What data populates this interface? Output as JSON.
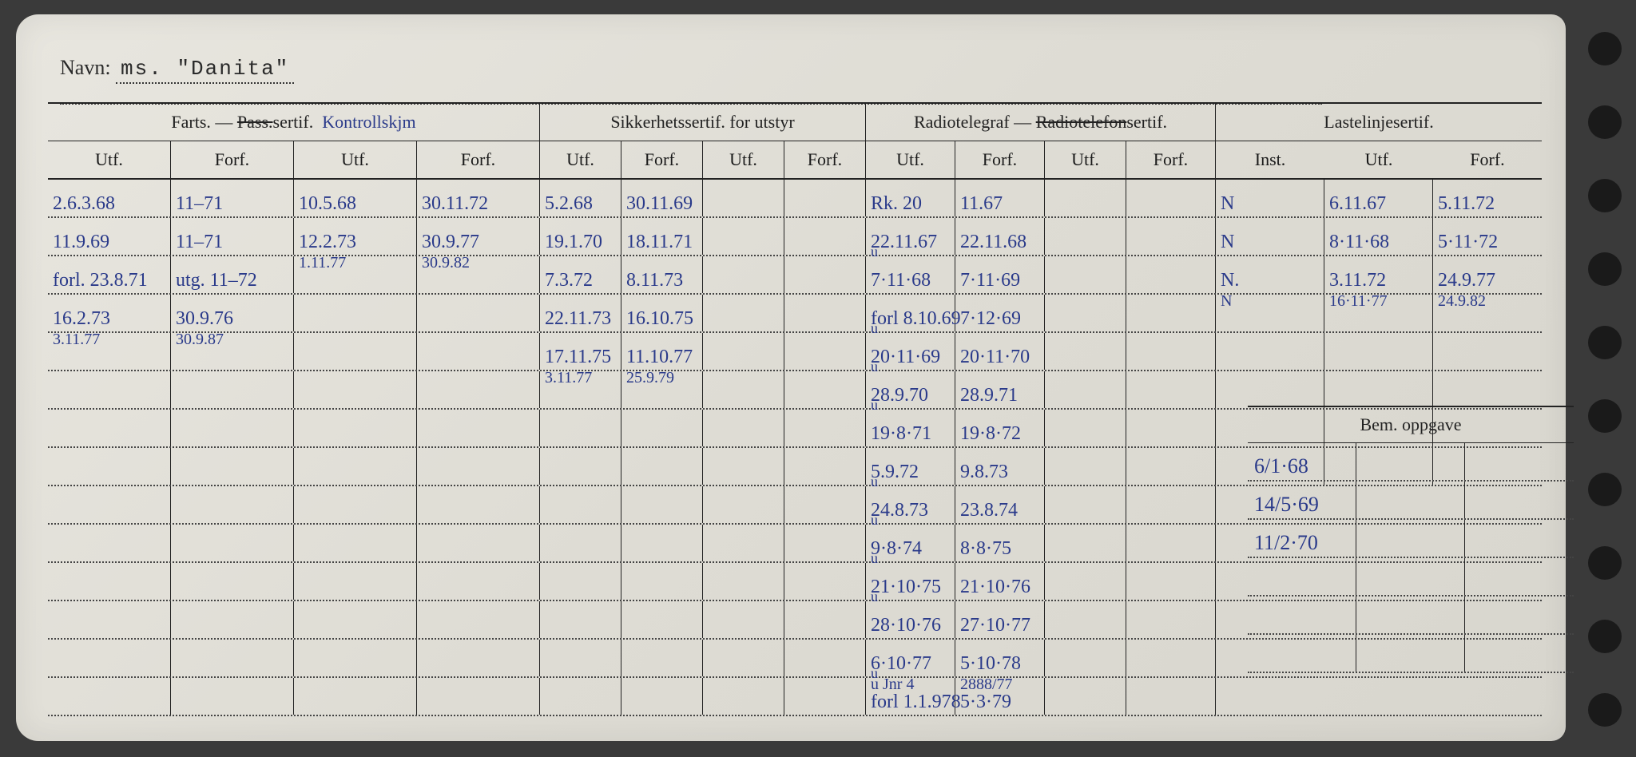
{
  "navn": {
    "label": "Navn:",
    "value": "ms. \"Danita\""
  },
  "sections": {
    "farts": {
      "title_prefix": "Farts. —",
      "pass_strike": "Pass.",
      "sertif": "sertif.",
      "hw_note": "Kontrollskjm"
    },
    "sikker": "Sikkerhetssertif. for utstyr",
    "radio": {
      "prefix": "Radiotelegraf —",
      "strike": "Radiotelefon",
      "suffix": "sertif."
    },
    "laste": "Lastelinjesertif."
  },
  "subheaders": {
    "utf": "Utf.",
    "forf": "Forf.",
    "inst": "Inst."
  },
  "bem_header": "Bem. oppgave",
  "rows": [
    {
      "farts": [
        "2.6.3.68",
        "11–71",
        "10.5.68",
        "30.11.72"
      ],
      "sikker": [
        "5.2.68",
        "30.11.69",
        "",
        ""
      ],
      "radio": [
        "Rk. 20",
        "11.67",
        "",
        ""
      ],
      "laste": [
        "N",
        "6.11.67",
        "5.11.72"
      ]
    },
    {
      "farts": [
        "11.9.69",
        "11–71",
        "12.2.73",
        "30.9.77"
      ],
      "farts_sub": [
        "",
        "",
        "1.11.77",
        "30.9.82"
      ],
      "sikker": [
        "19.1.70",
        "18.11.71",
        "",
        ""
      ],
      "radio": [
        "22.11.67",
        "22.11.68",
        "",
        ""
      ],
      "laste": [
        "N",
        "8·11·68",
        "5·11·72"
      ]
    },
    {
      "farts": [
        "forl. 23.8.71",
        "utg. 11–72",
        "",
        ""
      ],
      "sikker": [
        "7.3.72",
        "8.11.73",
        "",
        ""
      ],
      "radio": [
        "7·11·68",
        "7·11·69",
        "",
        ""
      ],
      "radio_pre": "u",
      "laste": [
        "N.",
        "3.11.72",
        "24.9.77"
      ],
      "laste_sub": [
        "N",
        "16·11·77",
        "24.9.82"
      ]
    },
    {
      "farts": [
        "16.2.73",
        "30.9.76",
        "",
        ""
      ],
      "farts_sub": [
        "3.11.77",
        "30.9.87",
        "",
        ""
      ],
      "sikker": [
        "22.11.73",
        "16.10.75",
        "",
        ""
      ],
      "radio": [
        "forl 8.10.69",
        "7·12·69",
        "",
        ""
      ],
      "laste": [
        "",
        "",
        ""
      ]
    },
    {
      "farts": [
        "",
        "",
        "",
        ""
      ],
      "sikker": [
        "17.11.75",
        "11.10.77",
        "",
        ""
      ],
      "sikker_sub": [
        "3.11.77",
        "25.9.79",
        "",
        ""
      ],
      "radio": [
        "20·11·69",
        "20·11·70",
        "",
        ""
      ],
      "radio_pre": "u",
      "laste": [
        "",
        "",
        ""
      ]
    },
    {
      "farts": [
        "",
        "",
        "",
        ""
      ],
      "sikker": [
        "",
        "",
        "",
        ""
      ],
      "radio": [
        "28.9.70",
        "28.9.71",
        "",
        ""
      ],
      "radio_pre": "u",
      "laste": [
        "",
        "",
        ""
      ]
    },
    {
      "farts": [
        "",
        "",
        "",
        ""
      ],
      "sikker": [
        "",
        "",
        "",
        ""
      ],
      "radio": [
        "19·8·71",
        "19·8·72",
        "",
        ""
      ],
      "radio_pre": "u",
      "laste": [
        "",
        "",
        ""
      ]
    },
    {
      "farts": [
        "",
        "",
        "",
        ""
      ],
      "sikker": [
        "",
        "",
        "",
        ""
      ],
      "radio": [
        "5.9.72",
        "9.8.73",
        "",
        ""
      ],
      "laste": [
        "",
        "",
        ""
      ]
    },
    {
      "farts": [
        "",
        "",
        "",
        ""
      ],
      "sikker": [
        "",
        "",
        "",
        ""
      ],
      "radio": [
        "24.8.73",
        "23.8.74",
        "",
        ""
      ],
      "radio_pre": "u",
      "laste": null
    },
    {
      "farts": [
        "",
        "",
        "",
        ""
      ],
      "sikker": [
        "",
        "",
        "",
        ""
      ],
      "radio": [
        "9·8·74",
        "8·8·75",
        "",
        ""
      ],
      "radio_pre": "u",
      "laste": null
    },
    {
      "farts": [
        "",
        "",
        "",
        ""
      ],
      "sikker": [
        "",
        "",
        "",
        ""
      ],
      "radio": [
        "21·10·75",
        "21·10·76",
        "",
        ""
      ],
      "radio_pre": "u",
      "laste": null
    },
    {
      "farts": [
        "",
        "",
        "",
        ""
      ],
      "sikker": [
        "",
        "",
        "",
        ""
      ],
      "radio": [
        "28·10·76",
        "27·10·77",
        "",
        ""
      ],
      "radio_pre": "u",
      "laste": null
    },
    {
      "farts": [
        "",
        "",
        "",
        ""
      ],
      "sikker": [
        "",
        "",
        "",
        ""
      ],
      "radio": [
        "6·10·77",
        "5·10·78",
        "",
        ""
      ],
      "radio_sub": [
        "u Jnr 4",
        "2888/77",
        "",
        ""
      ],
      "laste": null
    },
    {
      "farts": [
        "",
        "",
        "",
        ""
      ],
      "sikker": [
        "",
        "",
        "",
        ""
      ],
      "radio": [
        "forl 1.1.978",
        "5·3·79",
        "",
        ""
      ],
      "radio_pre": "u",
      "laste": null
    }
  ],
  "bem_rows": [
    [
      "6/1·68",
      "",
      ""
    ],
    [
      "14/5·69",
      "",
      ""
    ],
    [
      "11/2·70",
      "",
      ""
    ],
    [
      "",
      "",
      ""
    ],
    [
      "",
      "",
      ""
    ],
    [
      "",
      "",
      ""
    ]
  ],
  "colors": {
    "ink_blue": "#2a3a8a",
    "ink_black": "#1a1a1a",
    "paper": "#e2e0d8",
    "bg": "#3a3a3a"
  }
}
